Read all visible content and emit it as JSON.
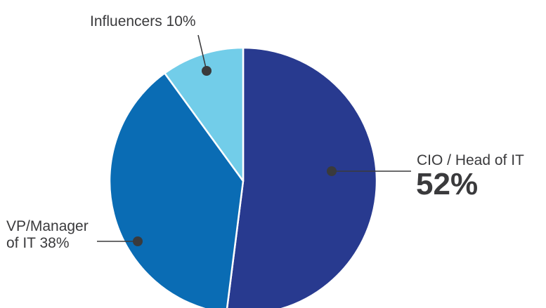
{
  "chart_data": {
    "type": "pie",
    "title": "",
    "slices": [
      {
        "label": "CIO / Head of IT",
        "value": 52,
        "value_label": "52%",
        "color": "#283a8f"
      },
      {
        "label": "VP/Manager of IT",
        "value": 38,
        "value_label": "38%",
        "color": "#0a6cb4"
      },
      {
        "label": "Influencers",
        "value": 10,
        "value_label": "10%",
        "color": "#72cde9"
      }
    ]
  },
  "labels": {
    "cio_line1": "CIO / Head of IT",
    "cio_line2": "52%",
    "vp_line1": "VP/Manager",
    "vp_line2": "of IT 38%",
    "influencers": "Influencers 10%"
  },
  "colors": {
    "leader": "#3a3a3c",
    "separator": "#ffffff"
  }
}
